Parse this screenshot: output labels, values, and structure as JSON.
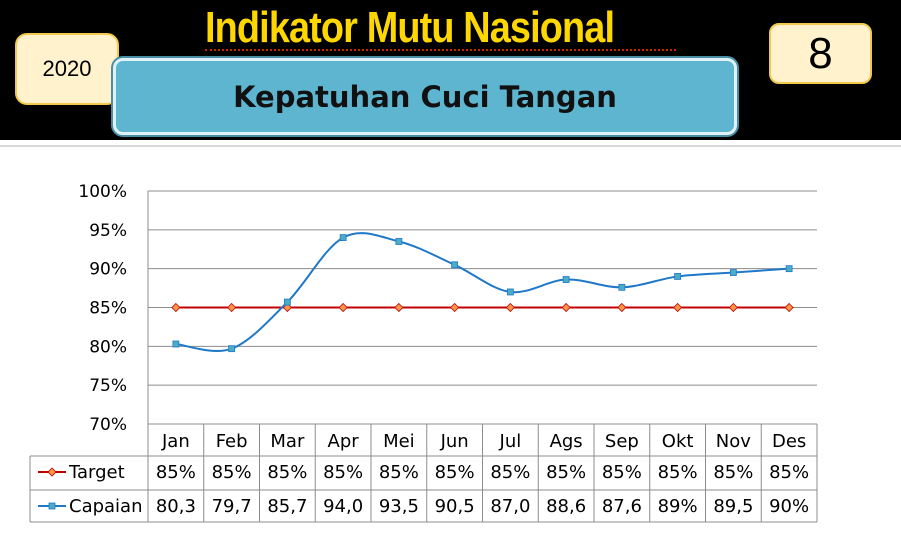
{
  "header": {
    "title": "Indikator Mutu Nasional",
    "year": "2020",
    "number": "8",
    "subtitle": "Kepatuhan Cuci Tangan"
  },
  "chart_data": {
    "type": "line",
    "title": "",
    "xlabel": "",
    "ylabel": "",
    "ylim": [
      70,
      100
    ],
    "y_ticks": [
      "70%",
      "75%",
      "80%",
      "85%",
      "90%",
      "95%",
      "100%"
    ],
    "categories": [
      "Jan",
      "Feb",
      "Mar",
      "Apr",
      "Mei",
      "Jun",
      "Jul",
      "Ags",
      "Sep",
      "Okt",
      "Nov",
      "Des"
    ],
    "grid": true,
    "series": [
      {
        "name": "Target",
        "color": "#c00000",
        "marker_color": "#f79646",
        "marker": "diamond",
        "values": [
          85,
          85,
          85,
          85,
          85,
          85,
          85,
          85,
          85,
          85,
          85,
          85
        ],
        "labels": [
          "85%",
          "85%",
          "85%",
          "85%",
          "85%",
          "85%",
          "85%",
          "85%",
          "85%",
          "85%",
          "85%",
          "85%"
        ]
      },
      {
        "name": "Capaian",
        "color": "#1f78c8",
        "marker_color": "#4bacc6",
        "marker": "square",
        "values": [
          80.3,
          79.7,
          85.7,
          94.0,
          93.5,
          90.5,
          87.0,
          88.6,
          87.6,
          89,
          89.5,
          90
        ],
        "labels": [
          "80,3",
          "79,7",
          "85,7",
          "94,0",
          "93,5",
          "90,5",
          "87,0",
          "88,6",
          "87,6",
          "89%",
          "89,5",
          "90%"
        ]
      }
    ]
  }
}
